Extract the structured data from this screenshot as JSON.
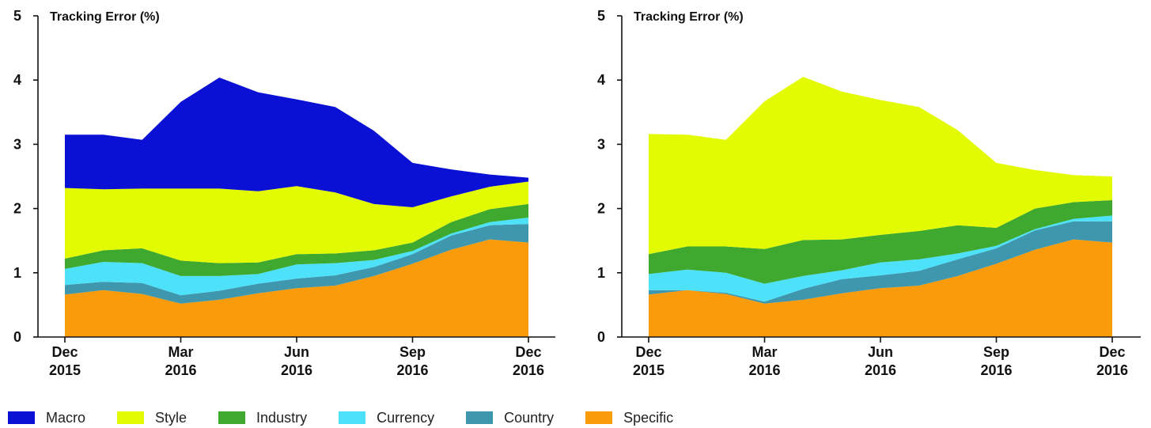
{
  "chart_data": [
    {
      "type": "area",
      "stacked": true,
      "title": "Tracking Error (%)",
      "xlabel": "",
      "ylabel": "",
      "ylim": [
        0,
        5
      ],
      "yticks": [
        "0",
        "1",
        "2",
        "3",
        "4",
        "5"
      ],
      "x": [
        0,
        1,
        2,
        3,
        4,
        5,
        6,
        7,
        8,
        9,
        10,
        11,
        12
      ],
      "xticks": [
        {
          "x": 0,
          "line1": "Dec",
          "line2": "2015"
        },
        {
          "x": 3,
          "line1": "Mar",
          "line2": "2016"
        },
        {
          "x": 6,
          "line1": "Jun",
          "line2": "2016"
        },
        {
          "x": 9,
          "line1": "Sep",
          "line2": "2016"
        },
        {
          "x": 12,
          "line1": "Dec",
          "line2": "2016"
        }
      ],
      "series": [
        {
          "name": "Specific",
          "color": "#f99b0b",
          "values": [
            0.66,
            0.73,
            0.67,
            0.52,
            0.58,
            0.68,
            0.76,
            0.8,
            0.95,
            1.14,
            1.36,
            1.52,
            1.47
          ]
        },
        {
          "name": "Country",
          "color": "#3e97ad",
          "values": [
            0.15,
            0.13,
            0.17,
            0.13,
            0.14,
            0.15,
            0.15,
            0.16,
            0.14,
            0.15,
            0.22,
            0.22,
            0.29
          ]
        },
        {
          "name": "Currency",
          "color": "#4de2fa",
          "values": [
            0.25,
            0.31,
            0.31,
            0.3,
            0.23,
            0.15,
            0.22,
            0.19,
            0.11,
            0.05,
            0.03,
            0.05,
            0.1
          ]
        },
        {
          "name": "Industry",
          "color": "#3ea92e",
          "values": [
            0.16,
            0.18,
            0.23,
            0.24,
            0.2,
            0.18,
            0.16,
            0.15,
            0.15,
            0.13,
            0.18,
            0.2,
            0.21
          ]
        },
        {
          "name": "Style",
          "color": "#e3fb02",
          "values": [
            1.1,
            0.95,
            0.93,
            1.12,
            1.16,
            1.11,
            1.06,
            0.95,
            0.72,
            0.55,
            0.4,
            0.35,
            0.35
          ]
        },
        {
          "name": "Macro",
          "color": "#0a11d4",
          "values": [
            0.83,
            0.85,
            0.76,
            1.35,
            1.73,
            1.54,
            1.35,
            1.33,
            1.14,
            0.69,
            0.42,
            0.19,
            0.06
          ]
        }
      ]
    },
    {
      "type": "area",
      "stacked": true,
      "title": "Tracking Error (%)",
      "xlabel": "",
      "ylabel": "",
      "ylim": [
        0,
        5
      ],
      "yticks": [
        "0",
        "1",
        "2",
        "3",
        "4",
        "5"
      ],
      "x": [
        0,
        1,
        2,
        3,
        4,
        5,
        6,
        7,
        8,
        9,
        10,
        11,
        12
      ],
      "xticks": [
        {
          "x": 0,
          "line1": "Dec",
          "line2": "2015"
        },
        {
          "x": 3,
          "line1": "Mar",
          "line2": "2016"
        },
        {
          "x": 6,
          "line1": "Jun",
          "line2": "2016"
        },
        {
          "x": 9,
          "line1": "Sep",
          "line2": "2016"
        },
        {
          "x": 12,
          "line1": "Dec",
          "line2": "2016"
        }
      ],
      "series": [
        {
          "name": "Specific",
          "color": "#f99b0b",
          "values": [
            0.66,
            0.73,
            0.67,
            0.52,
            0.58,
            0.68,
            0.76,
            0.8,
            0.95,
            1.14,
            1.36,
            1.52,
            1.47
          ]
        },
        {
          "name": "Country",
          "color": "#3e97ad",
          "values": [
            0.07,
            0.0,
            0.02,
            0.03,
            0.17,
            0.22,
            0.2,
            0.23,
            0.26,
            0.24,
            0.3,
            0.28,
            0.33
          ]
        },
        {
          "name": "Currency",
          "color": "#4de2fa",
          "values": [
            0.25,
            0.32,
            0.31,
            0.28,
            0.2,
            0.14,
            0.2,
            0.18,
            0.09,
            0.04,
            0.02,
            0.04,
            0.09
          ]
        },
        {
          "name": "Industry",
          "color": "#3ea92e",
          "values": [
            0.31,
            0.36,
            0.41,
            0.54,
            0.56,
            0.48,
            0.43,
            0.44,
            0.44,
            0.28,
            0.32,
            0.26,
            0.24
          ]
        },
        {
          "name": "Style",
          "color": "#e3fb02",
          "values": [
            1.87,
            1.74,
            1.66,
            2.3,
            2.54,
            2.3,
            2.1,
            1.93,
            1.48,
            1.01,
            0.6,
            0.42,
            0.37
          ]
        }
      ]
    }
  ],
  "legend": [
    {
      "name": "Macro",
      "color": "#0a11d4"
    },
    {
      "name": "Style",
      "color": "#e3fb02"
    },
    {
      "name": "Industry",
      "color": "#3ea92e"
    },
    {
      "name": "Currency",
      "color": "#4de2fa"
    },
    {
      "name": "Country",
      "color": "#3e97ad"
    },
    {
      "name": "Specific",
      "color": "#f99b0b"
    }
  ]
}
